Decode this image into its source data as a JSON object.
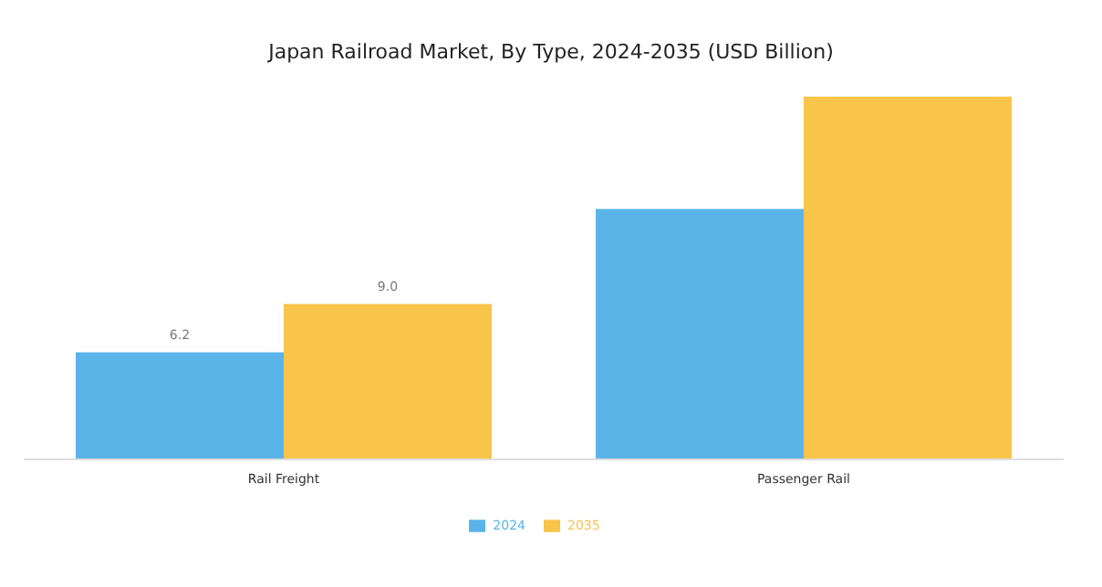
{
  "chart_data": {
    "type": "bar",
    "title": "Japan Railroad Market, By Type, 2024-2035 (USD Billion)",
    "categories": [
      "Rail Freight",
      "Passenger Rail"
    ],
    "series": [
      {
        "name": "2024",
        "color": "#5ab4e8",
        "values": [
          6.2,
          14.5
        ],
        "value_labels": [
          "6.2",
          null
        ]
      },
      {
        "name": "2035",
        "color": "#f9c44a",
        "values": [
          9.0,
          21.0
        ],
        "value_labels": [
          "9.0",
          null
        ]
      }
    ],
    "legend": "bottom",
    "grid": false,
    "tick_labels": "x"
  }
}
